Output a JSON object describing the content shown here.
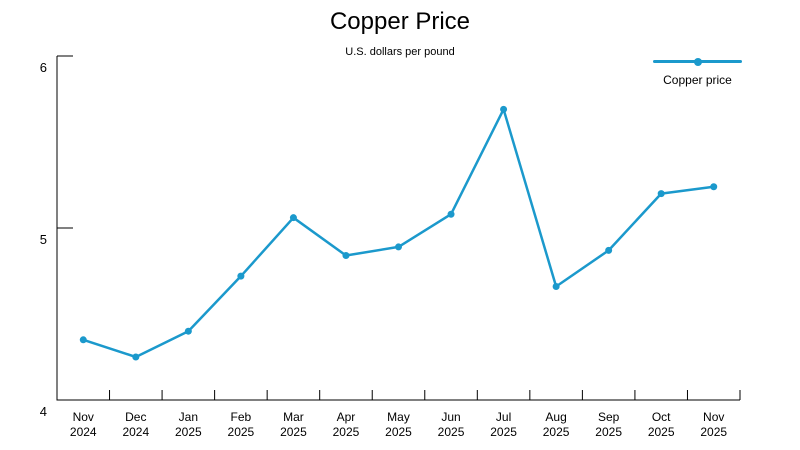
{
  "chart": {
    "title": "Copper Price",
    "subtitle": "U.S. dollars per pound",
    "legend": {
      "label": "Copper price"
    }
  },
  "chart_data": {
    "type": "line",
    "title": "Copper Price",
    "subtitle": "U.S. dollars per pound",
    "categories": [
      "Nov 2024",
      "Dec 2024",
      "Jan 2025",
      "Feb 2025",
      "Mar 2025",
      "Apr 2025",
      "May 2025",
      "Jun 2025",
      "Jul 2025",
      "Aug 2025",
      "Sep 2025",
      "Oct 2025",
      "Nov 2025"
    ],
    "series": [
      {
        "name": "Copper price",
        "color": "#1b99cc",
        "values": [
          4.35,
          4.25,
          4.4,
          4.72,
          5.06,
          4.84,
          4.89,
          5.08,
          5.69,
          4.66,
          4.87,
          5.2,
          5.24
        ]
      }
    ],
    "xlabel": "",
    "ylabel": "",
    "ylim": [
      4,
      6
    ],
    "yticks": [
      4,
      5,
      6
    ],
    "grid": false,
    "legend_position": "top-right",
    "axis_color": "#000000",
    "text_color": "#000000"
  }
}
